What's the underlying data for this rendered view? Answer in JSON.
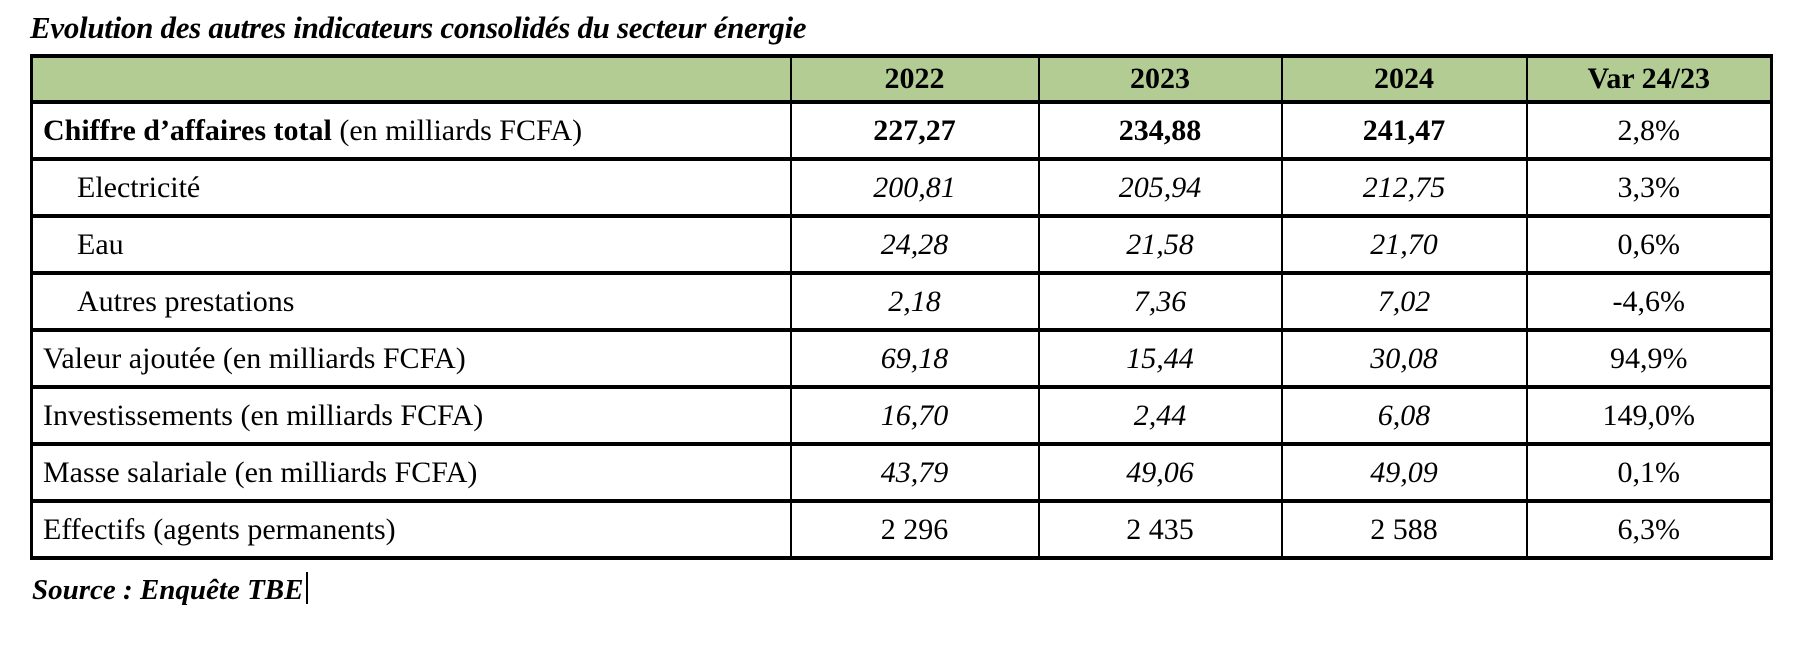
{
  "title": "Evolution des autres indicateurs consolidés du secteur énergie",
  "source": "Source : Enquête TBE",
  "colors": {
    "header_bg": "#B2CC94",
    "border": "#000000",
    "page_bg": "#FFFFFF"
  },
  "table": {
    "columns": [
      "2022",
      "2023",
      "2024",
      "Var 24/23"
    ],
    "rows": [
      {
        "label_strong": "Chiffre d’affaires total",
        "label_suffix": " (en milliards FCFA)",
        "values": [
          "227,27",
          "234,88",
          "241,47"
        ],
        "variation": "2,8%"
      },
      {
        "label": "Electricité",
        "values": [
          "200,81",
          "205,94",
          "212,75"
        ],
        "variation": "3,3%"
      },
      {
        "label": "Eau",
        "values": [
          "24,28",
          "21,58",
          "21,70"
        ],
        "variation": "0,6%"
      },
      {
        "label": "Autres prestations",
        "values": [
          "2,18",
          "7,36",
          "7,02"
        ],
        "variation": "-4,6%"
      },
      {
        "label": "Valeur ajoutée (en milliards FCFA)",
        "values": [
          "69,18",
          "15,44",
          "30,08"
        ],
        "variation": "94,9%"
      },
      {
        "label": "Investissements (en milliards FCFA)",
        "values": [
          "16,70",
          "2,44",
          "6,08"
        ],
        "variation": "149,0%"
      },
      {
        "label": "Masse salariale (en milliards FCFA)",
        "values": [
          "43,79",
          "49,06",
          "49,09"
        ],
        "variation": "0,1%"
      },
      {
        "label": "Effectifs (agents permanents)",
        "values": [
          "2 296",
          "2 435",
          "2 588"
        ],
        "variation": "6,3%"
      }
    ]
  }
}
